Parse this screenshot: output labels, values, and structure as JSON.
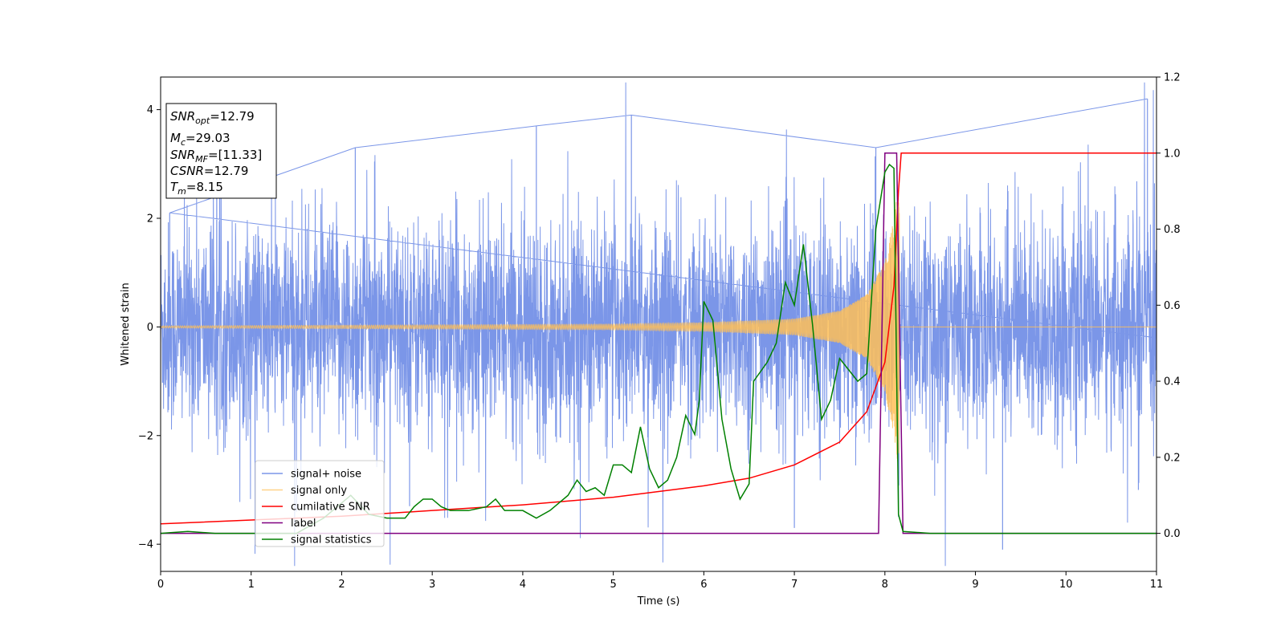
{
  "chart_data": {
    "type": "line",
    "xlabel": "Time (s)",
    "ylabel": "Whitened strain",
    "xlim": [
      0,
      11
    ],
    "ylim": [
      -4.5,
      4.6
    ],
    "y2lim": [
      -0.1,
      1.2
    ],
    "x_ticks": [
      0,
      1,
      2,
      3,
      4,
      5,
      6,
      7,
      8,
      9,
      10,
      11
    ],
    "y_ticks": [
      -4,
      -2,
      0,
      2,
      4
    ],
    "y2_ticks": [
      0.0,
      0.2,
      0.4,
      0.6,
      0.8,
      1.0,
      1.2
    ],
    "y_tick_labels": [
      "−4",
      "−2",
      "0",
      "2",
      "4"
    ],
    "y2_tick_labels": [
      "0.0",
      "0.2",
      "0.4",
      "0.6",
      "0.8",
      "1.0",
      "1.2"
    ],
    "grid": false,
    "legend_position": "lower-left",
    "annotation": {
      "snr_opt_sub": "opt",
      "snr_opt_value": "=12.79",
      "mc_sub": "c",
      "mc_value": "=29.03",
      "snr_mf_sub": "MF",
      "snr_mf_value": "=[11.33]",
      "csnr_value": "=12.79",
      "tm_sub": "m",
      "tm_value": "=8.15"
    },
    "series": [
      {
        "name": "signal+ noise",
        "axis": "left",
        "color": "#7b96e8",
        "description": "noise envelope approx ±1.3 typical, peaks to about ±3.3",
        "envelope_peaks": [
          [
            0.1,
            2.1
          ],
          [
            2.15,
            3.3
          ],
          [
            4.15,
            3.7
          ],
          [
            5.2,
            3.9
          ],
          [
            7.9,
            3.3
          ],
          [
            10.9,
            4.2
          ]
        ],
        "envelope_troughs": [
          [
            1.5,
            -3.4
          ],
          [
            2.75,
            -3.3
          ],
          [
            7.0,
            -3.7
          ],
          [
            8.15,
            -3.5
          ],
          [
            9.3,
            -4.1
          ],
          [
            10.8,
            -3.0
          ]
        ]
      },
      {
        "name": "signal only",
        "axis": "left",
        "color": "#ffbf57",
        "description": "chirp from t~5 growing to ±2.6 near merger at 8.15",
        "amplitude": [
          [
            0,
            0.02
          ],
          [
            5.0,
            0.05
          ],
          [
            6.0,
            0.08
          ],
          [
            7.0,
            0.15
          ],
          [
            7.5,
            0.3
          ],
          [
            7.8,
            0.6
          ],
          [
            8.0,
            1.2
          ],
          [
            8.1,
            2.0
          ],
          [
            8.15,
            2.6
          ],
          [
            8.2,
            0.0
          ],
          [
            11,
            0.0
          ]
        ]
      },
      {
        "name": "cumilative SNR",
        "axis": "right",
        "color": "#ff0000",
        "points": [
          [
            0,
            0.025
          ],
          [
            1,
            0.035
          ],
          [
            2,
            0.045
          ],
          [
            3,
            0.06
          ],
          [
            4,
            0.075
          ],
          [
            5,
            0.095
          ],
          [
            6,
            0.125
          ],
          [
            6.5,
            0.145
          ],
          [
            7,
            0.18
          ],
          [
            7.5,
            0.24
          ],
          [
            7.8,
            0.32
          ],
          [
            8.0,
            0.45
          ],
          [
            8.1,
            0.65
          ],
          [
            8.15,
            0.9
          ],
          [
            8.18,
            1.0
          ],
          [
            11,
            1.0
          ]
        ]
      },
      {
        "name": "label",
        "axis": "right",
        "color": "#800080",
        "points": [
          [
            0,
            0
          ],
          [
            7.93,
            0
          ],
          [
            8.0,
            1.0
          ],
          [
            8.13,
            1.0
          ],
          [
            8.2,
            0
          ],
          [
            11,
            0
          ]
        ]
      },
      {
        "name": "signal statistics",
        "axis": "right",
        "color": "#008000",
        "points": [
          [
            0,
            0.0
          ],
          [
            0.3,
            0.005
          ],
          [
            0.6,
            0.0
          ],
          [
            1.0,
            0.0
          ],
          [
            1.5,
            0.0
          ],
          [
            1.8,
            0.04
          ],
          [
            2.1,
            0.1
          ],
          [
            2.3,
            0.05
          ],
          [
            2.5,
            0.04
          ],
          [
            2.7,
            0.04
          ],
          [
            2.8,
            0.07
          ],
          [
            2.9,
            0.09
          ],
          [
            3.0,
            0.09
          ],
          [
            3.1,
            0.07
          ],
          [
            3.2,
            0.06
          ],
          [
            3.4,
            0.06
          ],
          [
            3.6,
            0.07
          ],
          [
            3.7,
            0.09
          ],
          [
            3.8,
            0.06
          ],
          [
            4.0,
            0.06
          ],
          [
            4.15,
            0.04
          ],
          [
            4.3,
            0.06
          ],
          [
            4.5,
            0.1
          ],
          [
            4.6,
            0.14
          ],
          [
            4.7,
            0.11
          ],
          [
            4.8,
            0.12
          ],
          [
            4.9,
            0.1
          ],
          [
            5.0,
            0.18
          ],
          [
            5.1,
            0.18
          ],
          [
            5.2,
            0.16
          ],
          [
            5.3,
            0.28
          ],
          [
            5.4,
            0.17
          ],
          [
            5.5,
            0.12
          ],
          [
            5.6,
            0.14
          ],
          [
            5.7,
            0.2
          ],
          [
            5.8,
            0.31
          ],
          [
            5.9,
            0.26
          ],
          [
            5.95,
            0.35
          ],
          [
            6.0,
            0.61
          ],
          [
            6.1,
            0.56
          ],
          [
            6.2,
            0.3
          ],
          [
            6.3,
            0.17
          ],
          [
            6.4,
            0.09
          ],
          [
            6.5,
            0.13
          ],
          [
            6.55,
            0.4
          ],
          [
            6.7,
            0.45
          ],
          [
            6.8,
            0.5
          ],
          [
            6.9,
            0.66
          ],
          [
            7.0,
            0.6
          ],
          [
            7.1,
            0.76
          ],
          [
            7.2,
            0.55
          ],
          [
            7.3,
            0.3
          ],
          [
            7.4,
            0.35
          ],
          [
            7.5,
            0.46
          ],
          [
            7.6,
            0.43
          ],
          [
            7.7,
            0.4
          ],
          [
            7.8,
            0.42
          ],
          [
            7.9,
            0.8
          ],
          [
            8.0,
            0.95
          ],
          [
            8.05,
            0.97
          ],
          [
            8.1,
            0.96
          ],
          [
            8.15,
            0.05
          ],
          [
            8.2,
            0.005
          ],
          [
            8.5,
            0.0
          ],
          [
            11,
            0.0
          ]
        ]
      }
    ]
  }
}
